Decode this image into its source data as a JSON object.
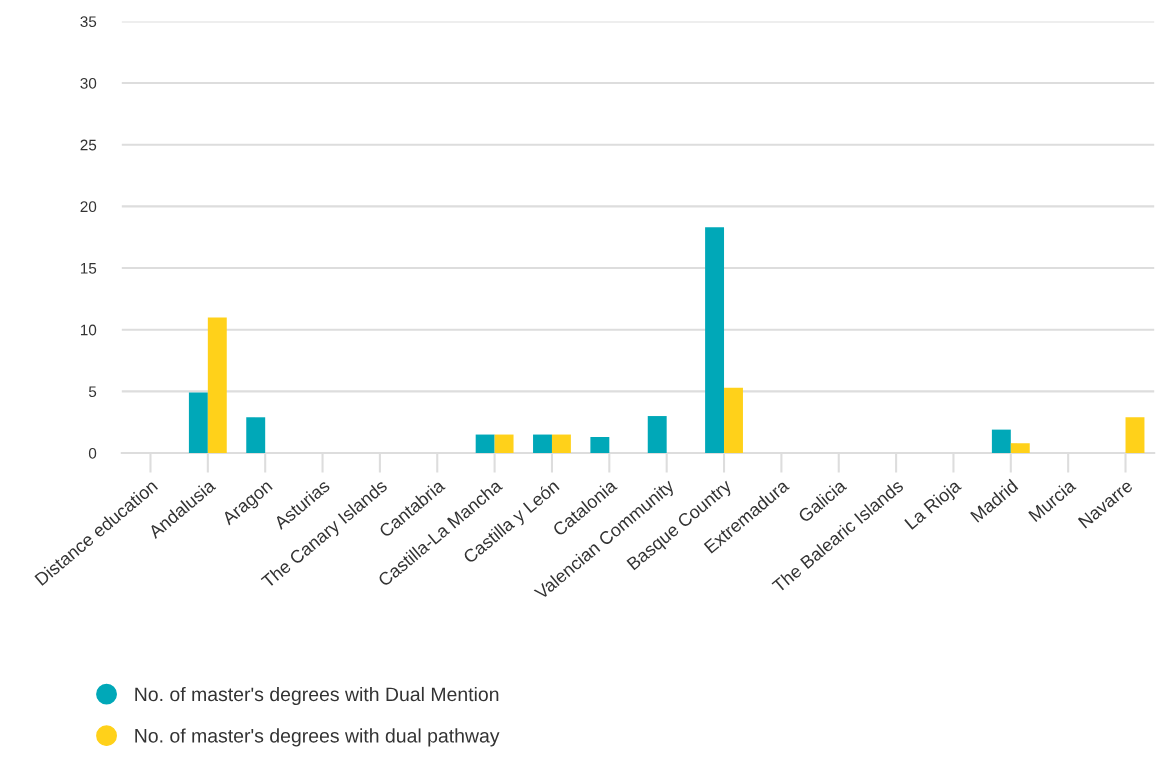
{
  "chart_data": {
    "type": "bar",
    "categories": [
      "Distance education",
      "Andalusia",
      "Aragon",
      "Asturias",
      "The Canary Islands",
      "Cantabria",
      "Castilla-La Mancha",
      "Castilla y León",
      "Catalonia",
      "Valencian Community",
      "Basque Country",
      "Extremadura",
      "Galicia",
      "The Balearic Islands",
      "La Rioja",
      "Madrid",
      "Murcia",
      "Navarre"
    ],
    "series": [
      {
        "name": "No. of master's degrees with Dual Mention",
        "color": "#00a8b8",
        "values": [
          0,
          4.9,
          2.9,
          0,
          0,
          0,
          1.5,
          1.5,
          1.3,
          3,
          18.3,
          0,
          0,
          0,
          0,
          1.9,
          0,
          0
        ]
      },
      {
        "name": "No. of master's degrees with dual pathway",
        "color": "#ffd11a",
        "values": [
          0,
          11,
          0,
          0,
          0,
          0,
          1.5,
          1.5,
          0,
          0,
          5.3,
          0,
          0,
          0,
          0,
          0.8,
          0,
          2.9
        ]
      }
    ],
    "ylim": [
      0,
      35
    ],
    "yticks": [
      0,
      5,
      10,
      15,
      20,
      25,
      30,
      35
    ],
    "grid": "y",
    "legend": "bottom left"
  }
}
